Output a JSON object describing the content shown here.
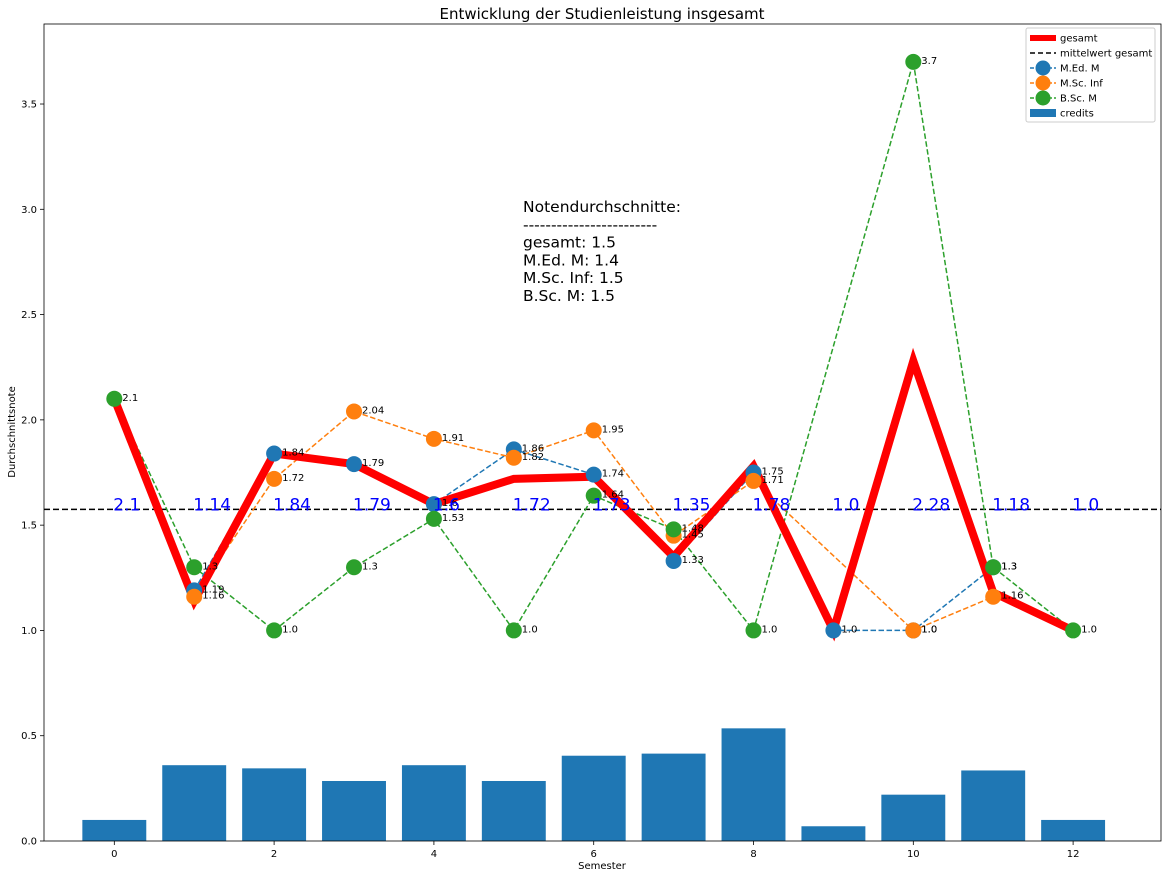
{
  "chart_data": {
    "type": "line",
    "title": "Entwicklung der Studienleistung insgesamt",
    "xlabel": "Semester",
    "ylabel": "Durchschnittsnote",
    "xlim": [
      -0.88,
      13.1
    ],
    "ylim": [
      0,
      3.88
    ],
    "xticks": [
      "0",
      "2",
      "4",
      "6",
      "8",
      "10",
      "12"
    ],
    "xtick_values": [
      0,
      2,
      4,
      6,
      8,
      10,
      12
    ],
    "yticks": [
      "0.0",
      "0.5",
      "1.0",
      "1.5",
      "2.0",
      "2.5",
      "3.0",
      "3.5"
    ],
    "ytick_values": [
      0,
      0.5,
      1.0,
      1.5,
      2.0,
      2.5,
      3.0,
      3.5
    ],
    "legend_position": "top-right",
    "series": [
      {
        "name": "gesamt",
        "style": "thick-line",
        "color": "#ff0000",
        "x": [
          0,
          1,
          2,
          3,
          4,
          5,
          6,
          7,
          8,
          9,
          10,
          11,
          12
        ],
        "y": [
          2.1,
          1.14,
          1.84,
          1.79,
          1.6,
          1.72,
          1.73,
          1.35,
          1.78,
          1.0,
          2.28,
          1.18,
          1.0
        ],
        "value_labels": [
          "2.1",
          "1.14",
          "1.84",
          "1.79",
          "1.6",
          "1.72",
          "1.73",
          "1.35",
          "1.78",
          "1.0",
          "2.28",
          "1.18",
          "1.0"
        ]
      },
      {
        "name": "mittelwert gesamt",
        "style": "hline",
        "color": "#000000",
        "y": 1.575
      },
      {
        "name": "M.Ed. M",
        "style": "dashed-markers",
        "color": "#1f77b4",
        "x": [
          1,
          2,
          3,
          4,
          5,
          6,
          7,
          8,
          9,
          10,
          11
        ],
        "y": [
          1.19,
          1.84,
          1.79,
          1.6,
          1.86,
          1.74,
          1.33,
          1.75,
          1.0,
          1.0,
          1.3
        ],
        "labels": [
          "1.19",
          "1.84",
          "1.79",
          "1.6",
          "1.86",
          "1.74",
          "1.33",
          "1.75",
          "1.0",
          "1.0",
          "1.3"
        ]
      },
      {
        "name": "M.Sc. Inf",
        "style": "dashed-markers",
        "color": "#ff7f0e",
        "x": [
          1,
          2,
          3,
          4,
          5,
          6,
          7,
          8,
          10,
          11
        ],
        "y": [
          1.16,
          1.72,
          2.04,
          1.91,
          1.82,
          1.95,
          1.45,
          1.71,
          1.0,
          1.16
        ],
        "labels": [
          "1.16",
          "1.72",
          "2.04",
          "1.91",
          "1.82",
          "1.95",
          "1.45",
          "1.71",
          "1.0",
          "1.16"
        ]
      },
      {
        "name": "B.Sc. M",
        "style": "dashed-markers",
        "color": "#2ca02c",
        "x": [
          0,
          1,
          2,
          3,
          4,
          5,
          6,
          7,
          8,
          10,
          11,
          12
        ],
        "y": [
          2.1,
          1.3,
          1.0,
          1.3,
          1.53,
          1.0,
          1.64,
          1.48,
          1.0,
          3.7,
          1.3,
          1.0
        ],
        "labels": [
          "2.1",
          "1.3",
          "1.0",
          "1.3",
          "1.53",
          "1.0",
          "1.64",
          "1.48",
          "1.0",
          "3.7",
          "1.3",
          "1.0"
        ]
      },
      {
        "name": "credits",
        "style": "bar",
        "color": "#1f77b4",
        "x": [
          0,
          1,
          2,
          3,
          4,
          5,
          6,
          7,
          8,
          9,
          10,
          11,
          12
        ],
        "y": [
          0.1,
          0.36,
          0.345,
          0.285,
          0.36,
          0.285,
          0.405,
          0.415,
          0.535,
          0.07,
          0.22,
          0.335,
          0.1
        ]
      }
    ],
    "annotation": {
      "lines": [
        "Notendurchschnitte:",
        "------------------------",
        "gesamt: 1.5",
        "M.Ed. M: 1.4",
        "M.Sc. Inf: 1.5",
        "B.Sc. M: 1.5"
      ]
    }
  }
}
